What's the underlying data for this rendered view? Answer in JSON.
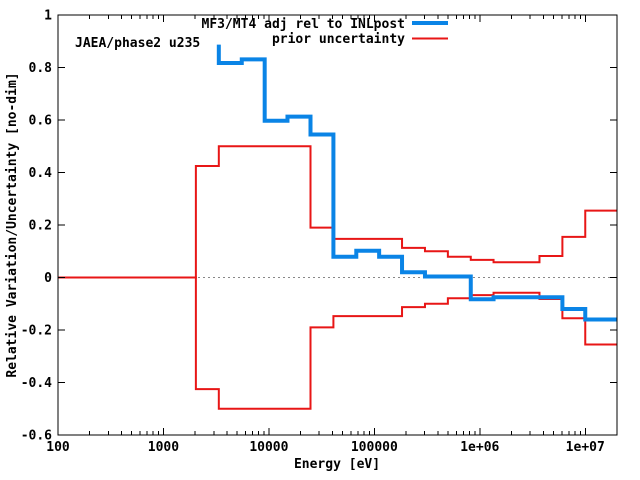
{
  "chart_data": {
    "type": "line",
    "subtype": "step-histogram, log x-axis",
    "annotation": "JAEA/phase2 u235",
    "xlabel": "Energy [eV]",
    "ylabel": "Relative Variation/Uncertainty [no-dim]",
    "x_scale": "log",
    "xlim": [
      100,
      20000000
    ],
    "ylim": [
      -0.6,
      1
    ],
    "grid": "zero-line only",
    "legend_position": "top-center",
    "colors": {
      "adjustment": "#0a84e6",
      "uncertainty": "#e81616",
      "zero_line": "#888888",
      "frame": "#000000"
    },
    "x_ticks": [
      {
        "label": "100",
        "eV": 100
      },
      {
        "label": "1000",
        "eV": 1000
      },
      {
        "label": "10000",
        "eV": 10000
      },
      {
        "label": "100000",
        "eV": 100000
      },
      {
        "label": "1e+06",
        "eV": 1000000
      },
      {
        "label": "1e+07",
        "eV": 10000000
      }
    ],
    "y_ticks": [
      {
        "label": "1",
        "v": 1
      },
      {
        "label": "0.8",
        "v": 0.8
      },
      {
        "label": "0.6",
        "v": 0.6
      },
      {
        "label": "0.4",
        "v": 0.4
      },
      {
        "label": "0.2",
        "v": 0.2
      },
      {
        "label": "0",
        "v": 0
      },
      {
        "label": "-0.2",
        "v": -0.2
      },
      {
        "label": "-0.4",
        "v": -0.4
      },
      {
        "label": "-0.6",
        "v": -0.6
      }
    ],
    "group_bounds_eV": [
      100,
      2030,
      3350,
      5530,
      9120,
      15000,
      24800,
      40900,
      67400,
      111000,
      183000,
      302000,
      498000,
      821000,
      1350000,
      2230000,
      3680000,
      6070000,
      10000000,
      20000000
    ],
    "series": [
      {
        "name": "MF3/MT4 adj rel to INLpost",
        "color": "#0a84e6",
        "line_width": 4,
        "mirrored": false,
        "start_peak": 0.887,
        "values": [
          null,
          null,
          0.817,
          0.831,
          0.597,
          0.613,
          0.545,
          0.079,
          0.102,
          0.079,
          0.02,
          0.004,
          0.004,
          -0.083,
          -0.075,
          -0.075,
          -0.075,
          -0.12,
          -0.16
        ]
      },
      {
        "name": "prior uncertainty",
        "color": "#e81616",
        "line_width": 2,
        "mirrored": true,
        "values": [
          0,
          0.425,
          0.5,
          0.5,
          0.5,
          0.5,
          0.19,
          0.147,
          0.147,
          0.147,
          0.113,
          0.1,
          0.079,
          0.067,
          0.058,
          0.058,
          0.082,
          0.155,
          0.255
        ]
      }
    ],
    "legend": [
      {
        "label": "MF3/MT4 adj rel to INLpost",
        "color": "#0a84e6"
      },
      {
        "label": "prior uncertainty",
        "color": "#e81616"
      }
    ]
  }
}
